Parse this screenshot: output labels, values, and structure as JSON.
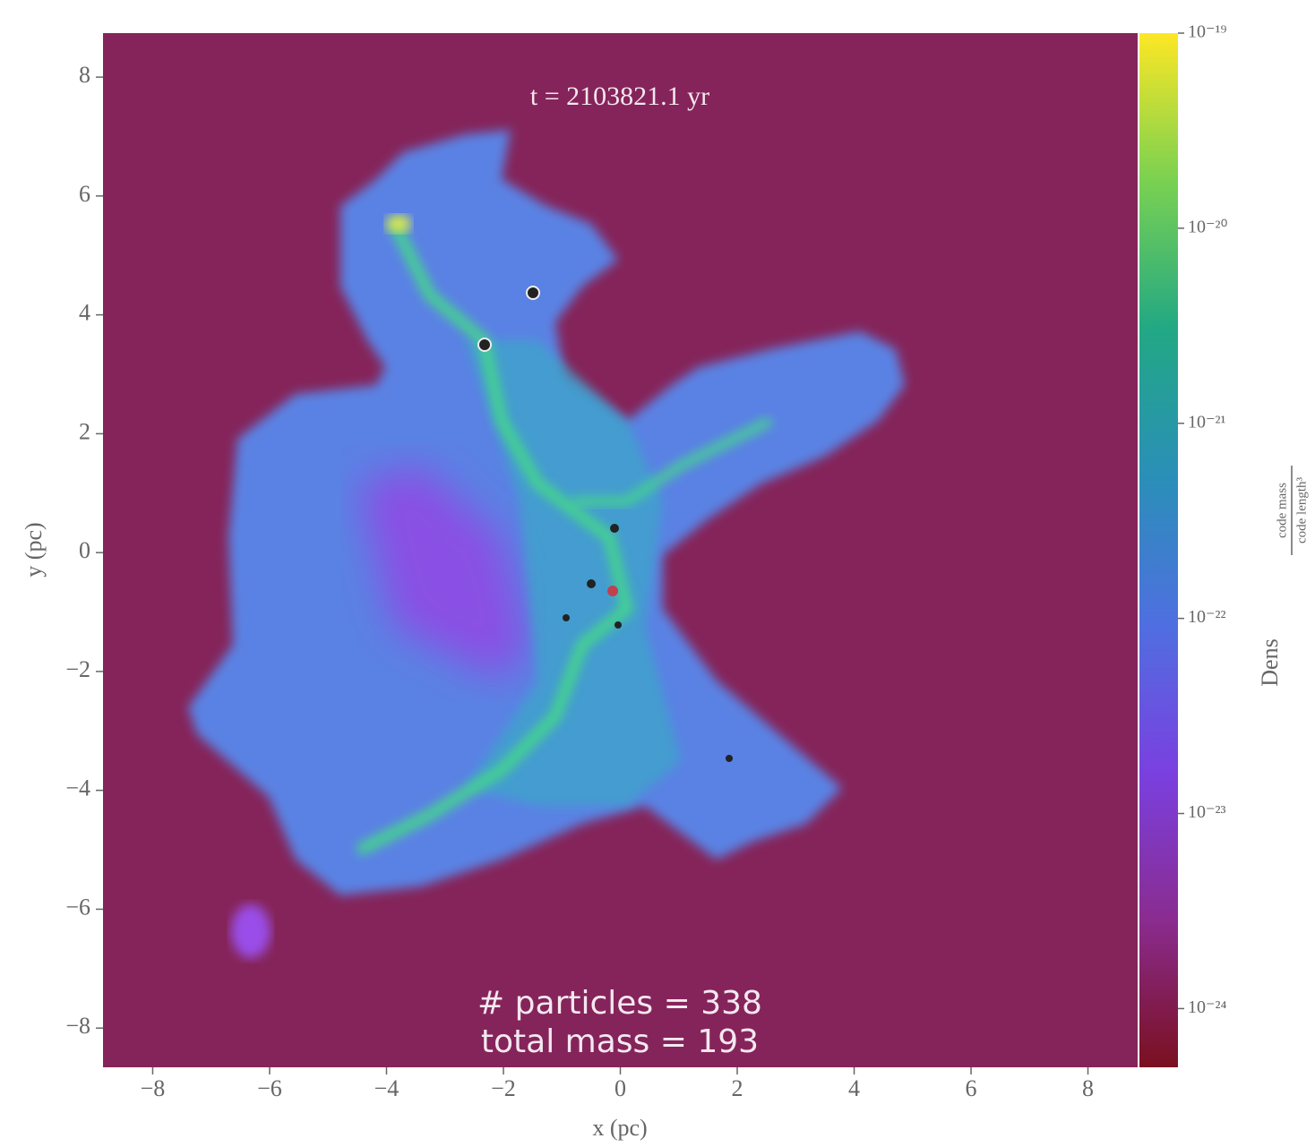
{
  "chart_data": {
    "type": "image",
    "title": "t = 2103821.1 yr",
    "annotations": [
      "# particles = 338",
      "total mass = 193"
    ],
    "xlabel": "x (pc)",
    "ylabel": "y (pc)",
    "xlim": [
      -8.85,
      8.85
    ],
    "ylim": [
      -8.66,
      8.74
    ],
    "xticks": [
      {
        "value": -8,
        "label": "−8"
      },
      {
        "value": -6,
        "label": "−6"
      },
      {
        "value": -4,
        "label": "−4"
      },
      {
        "value": -2,
        "label": "−2"
      },
      0,
      2,
      4,
      6,
      8
    ],
    "yticks": [
      {
        "value": -8,
        "label": "−8"
      },
      {
        "value": -6,
        "label": "−6"
      },
      {
        "value": -4,
        "label": "−4"
      },
      {
        "value": -2,
        "label": "−2"
      },
      0,
      2,
      4,
      6,
      8
    ],
    "background": "#85245a",
    "colorbar": {
      "label": "Dens",
      "unit_numerator": "code mass",
      "unit_denominator": "code length³",
      "log": true,
      "clim": [
        5e-25,
        1e-19
      ],
      "ticks": [
        {
          "value": 1e-19,
          "label": "10⁻¹⁹"
        },
        {
          "value": 1e-20,
          "label": "10⁻²⁰"
        },
        {
          "value": 1e-21,
          "label": "10⁻²¹"
        },
        {
          "value": 1e-22,
          "label": "10⁻²²"
        },
        {
          "value": 1e-23,
          "label": "10⁻²³"
        },
        {
          "value": 1e-24,
          "label": "10⁻²⁴"
        }
      ],
      "colormap": [
        "#fde725",
        "#7ad151",
        "#22a884",
        "#2a8fb8",
        "#4f6fe0",
        "#7a40e0",
        "#8a2c90",
        "#7a1020"
      ]
    }
  }
}
